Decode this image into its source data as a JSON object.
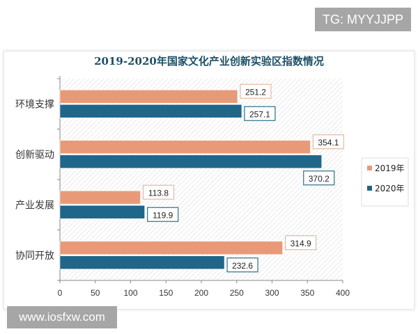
{
  "watermarks": {
    "top": "TG: MYYJJPP",
    "bottom": "www.iosfxw.com"
  },
  "chart_data": {
    "type": "bar",
    "orientation": "horizontal",
    "title": "2019-2020年国家文化产业创新实验区指数情况",
    "categories": [
      "环境支撑",
      "创新驱动",
      "产业发展",
      "协同开放"
    ],
    "series": [
      {
        "name": "2019年",
        "values": [
          251.2,
          354.1,
          113.8,
          314.9
        ],
        "color": "#e89a78"
      },
      {
        "name": "2020年",
        "values": [
          257.1,
          370.2,
          119.9,
          232.6
        ],
        "color": "#1f6689"
      }
    ],
    "xlim": [
      0,
      400
    ],
    "xticks": [
      0,
      50,
      100,
      150,
      200,
      250,
      300,
      350,
      400
    ],
    "data_labels": true,
    "background": "diagonal hatch",
    "legend": "right"
  }
}
